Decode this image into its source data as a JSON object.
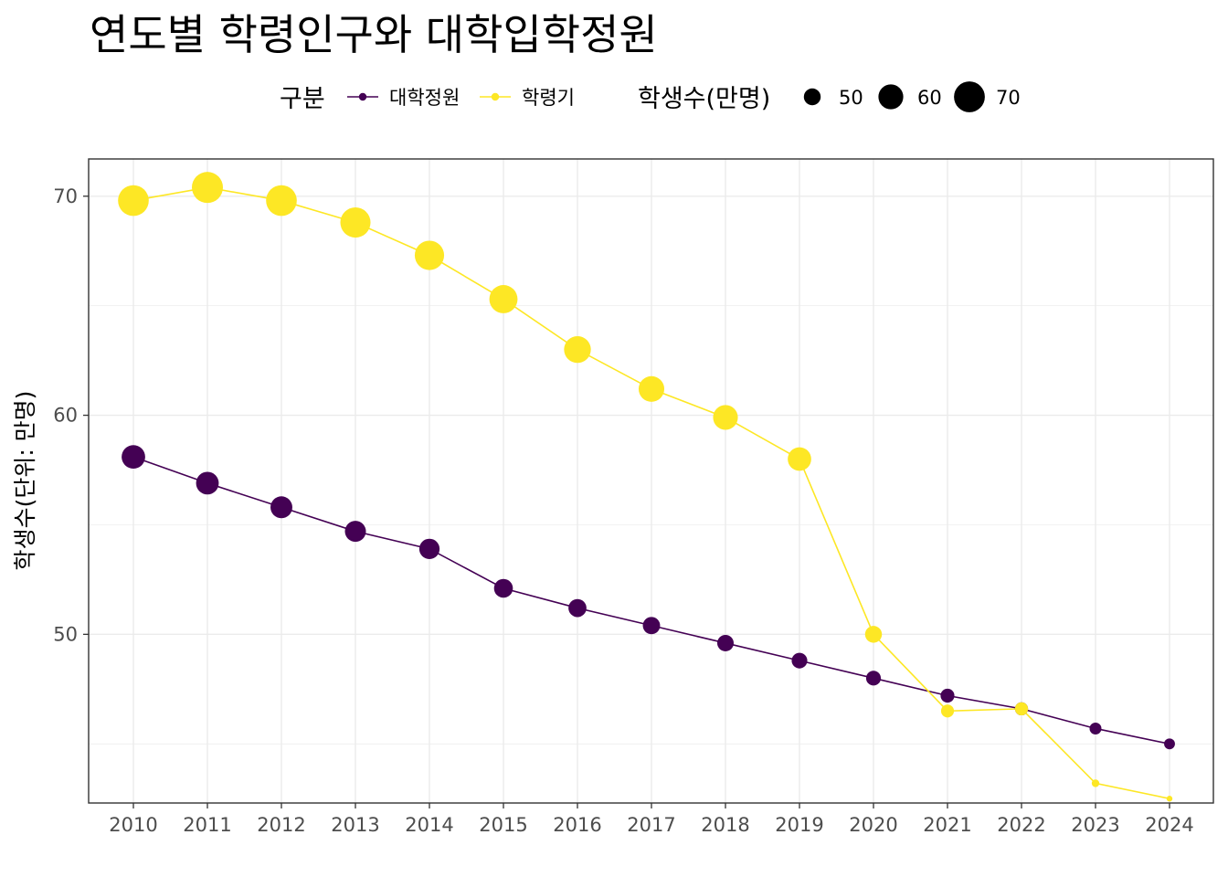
{
  "chart_data": {
    "type": "line",
    "title": "연도별 학령인구와 대학입학정원",
    "xlabel": "",
    "ylabel": "학생수(단위: 만명)",
    "x": [
      "2010",
      "2011",
      "2012",
      "2013",
      "2014",
      "2015",
      "2016",
      "2017",
      "2018",
      "2019",
      "2020",
      "2021",
      "2022",
      "2023",
      "2024"
    ],
    "ylim": [
      42.3,
      71.7
    ],
    "yticks": [
      50,
      60,
      70
    ],
    "grid": true,
    "legend_position": "top",
    "legend": {
      "color_title": "구분",
      "size_title": "학생수(만명)",
      "size_values": [
        50,
        60,
        70
      ],
      "size_labels": [
        "50",
        "60",
        "70"
      ]
    },
    "series": [
      {
        "name": "대학정원",
        "color": "#440154",
        "values": [
          58.1,
          56.9,
          55.8,
          54.7,
          53.9,
          52.1,
          51.2,
          50.4,
          49.6,
          48.8,
          48.0,
          47.2,
          46.6,
          45.7,
          45.0
        ]
      },
      {
        "name": "학령기",
        "color": "#fde725",
        "values": [
          69.8,
          70.4,
          69.8,
          68.8,
          67.3,
          65.3,
          63.0,
          61.2,
          59.9,
          58.0,
          50.0,
          46.5,
          46.6,
          43.2,
          42.5
        ]
      }
    ]
  }
}
